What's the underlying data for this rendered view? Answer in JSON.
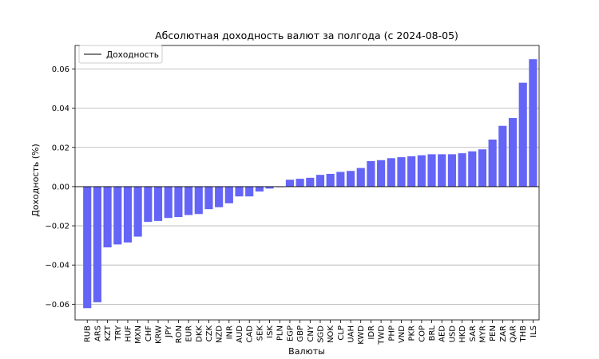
{
  "chart_data": {
    "type": "bar",
    "title": "Абсолютная доходность валют за полгода (с 2024-08-05)",
    "xlabel": "Валюты",
    "ylabel": "Доходность (%)",
    "ylim": [
      -0.068,
      0.072
    ],
    "yticks": [
      -0.06,
      -0.04,
      -0.02,
      0.0,
      0.02,
      0.04,
      0.06
    ],
    "ytick_labels": [
      "−0.06",
      "−0.04",
      "−0.02",
      "0.00",
      "0.02",
      "0.04",
      "0.06"
    ],
    "grid": "horizontal",
    "legend": {
      "position": "top-left",
      "label": "Доходность"
    },
    "bar_color": "#6464f6",
    "categories": [
      "RUB",
      "ARS",
      "KZT",
      "TRY",
      "HUF",
      "MXN",
      "CHF",
      "KRW",
      "JPY",
      "RON",
      "EUR",
      "DKK",
      "CZK",
      "NZD",
      "INR",
      "AUD",
      "CAD",
      "SEK",
      "ISK",
      "PLN",
      "EGP",
      "GBP",
      "CNY",
      "SGD",
      "NOK",
      "CLP",
      "UAH",
      "KWD",
      "IDR",
      "TWD",
      "PHP",
      "VND",
      "PKR",
      "COP",
      "BRL",
      "AED",
      "USD",
      "HKD",
      "SAR",
      "MYR",
      "PEN",
      "ZAR",
      "QAR",
      "THB",
      "ILS"
    ],
    "values": [
      -0.062,
      -0.059,
      -0.031,
      -0.0295,
      -0.0285,
      -0.0255,
      -0.018,
      -0.0175,
      -0.016,
      -0.0155,
      -0.0145,
      -0.014,
      -0.0115,
      -0.0105,
      -0.0085,
      -0.005,
      -0.005,
      -0.0025,
      -0.001,
      -0.0003,
      0.0035,
      0.004,
      0.0045,
      0.006,
      0.0065,
      0.0075,
      0.008,
      0.0095,
      0.013,
      0.0135,
      0.0145,
      0.015,
      0.0155,
      0.016,
      0.0165,
      0.0165,
      0.0165,
      0.017,
      0.018,
      0.019,
      0.024,
      0.031,
      0.035,
      0.053,
      0.065
    ]
  }
}
